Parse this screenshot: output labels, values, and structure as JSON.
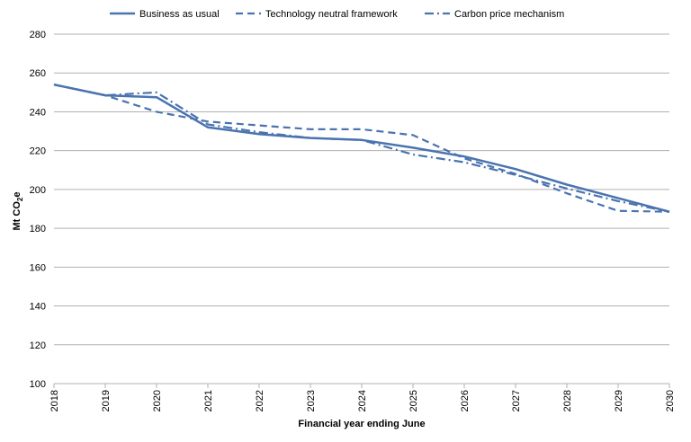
{
  "chart_data": {
    "type": "line",
    "xlabel": "Financial year ending June",
    "ylabel_main": "Mt CO",
    "ylabel_sub": "2",
    "ylabel_tail": "e",
    "ylim": [
      100,
      280
    ],
    "yticks": [
      100,
      120,
      140,
      160,
      180,
      200,
      220,
      240,
      260,
      280
    ],
    "x": [
      "2018",
      "2019",
      "2020",
      "2021",
      "2022",
      "2023",
      "2024",
      "2025",
      "2026",
      "2027",
      "2028",
      "2029",
      "2030"
    ],
    "grid": true,
    "legend_position": "top",
    "series": [
      {
        "name": "Business as usual",
        "style": "solid",
        "color": "#4a73b0",
        "values": [
          254,
          248.5,
          247.5,
          232,
          228.5,
          226.5,
          225.5,
          221.5,
          217,
          210.5,
          202.5,
          195.5,
          188.5
        ]
      },
      {
        "name": "Technology neutral framework",
        "style": "dash",
        "color": "#4a73b0",
        "values": [
          254,
          248.5,
          240,
          235,
          233,
          231,
          231,
          228,
          216,
          208,
          198,
          189,
          188.5
        ]
      },
      {
        "name": "Carbon price mechanism",
        "style": "dashdot",
        "color": "#4a73b0",
        "values": [
          254,
          248.5,
          250,
          233.5,
          229.5,
          226.5,
          225.5,
          218,
          214,
          207.5,
          200.5,
          194,
          188.5
        ]
      }
    ]
  }
}
